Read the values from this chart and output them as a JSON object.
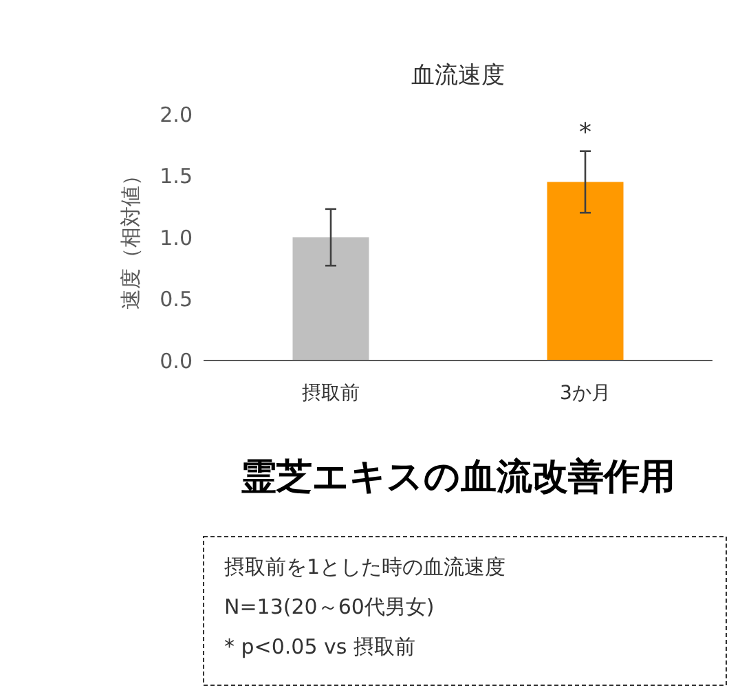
{
  "chart_data": {
    "type": "bar",
    "title": "血流速度",
    "ylabel": "速度（相対値）",
    "categories": [
      "摂取前",
      "3か月"
    ],
    "values": [
      1.0,
      1.45
    ],
    "errors": [
      0.23,
      0.25
    ],
    "colors": [
      "#bfbfbf",
      "#ff9900"
    ],
    "ylim": [
      0,
      2
    ],
    "yticks": [
      {
        "value": 0,
        "label": "0.0"
      },
      {
        "value": 0.5,
        "label": "0.5"
      },
      {
        "value": 1,
        "label": "1.0"
      },
      {
        "value": 1.5,
        "label": "1.5"
      },
      {
        "value": 2,
        "label": "2.0"
      }
    ],
    "grid": false,
    "annotations": [
      {
        "text": "*",
        "x": "3か月",
        "y": 1.7
      },
      "霊芝エキスの血流改善作用",
      "摂取前を1とした時の血流速度",
      "N=13(20～60代男女)",
      "* p<0.05 vs 摂取前"
    ]
  }
}
